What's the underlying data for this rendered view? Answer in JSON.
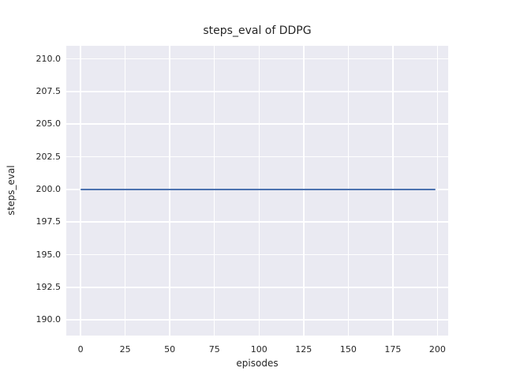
{
  "figure": {
    "title": "steps_eval of DDPG",
    "xlabel": "episodes",
    "ylabel": "steps_eval"
  },
  "chart_data": {
    "type": "line",
    "title": "steps_eval of DDPG",
    "xlabel": "episodes",
    "ylabel": "steps_eval",
    "xlim": [
      -8,
      206
    ],
    "ylim": [
      188.8,
      211.0
    ],
    "x_ticks": [
      0,
      25,
      50,
      75,
      100,
      125,
      150,
      175,
      200
    ],
    "x_tick_labels": [
      "0",
      "25",
      "50",
      "75",
      "100",
      "125",
      "150",
      "175",
      "200"
    ],
    "y_ticks": [
      190.0,
      192.5,
      195.0,
      197.5,
      200.0,
      202.5,
      205.0,
      207.5,
      210.0
    ],
    "y_tick_labels": [
      "190.0",
      "192.5",
      "195.0",
      "197.5",
      "200.0",
      "202.5",
      "205.0",
      "207.5",
      "210.0"
    ],
    "grid": true,
    "legend": false,
    "series": [
      {
        "name": "steps_eval",
        "color": "#4c72b0",
        "x": [
          0,
          199
        ],
        "y": [
          200.0,
          200.0
        ]
      }
    ],
    "style": {
      "figure_background": "#ffffff",
      "axes_background": "#eaeaf2",
      "grid_color": "#ffffff",
      "text_color": "#262626"
    }
  }
}
